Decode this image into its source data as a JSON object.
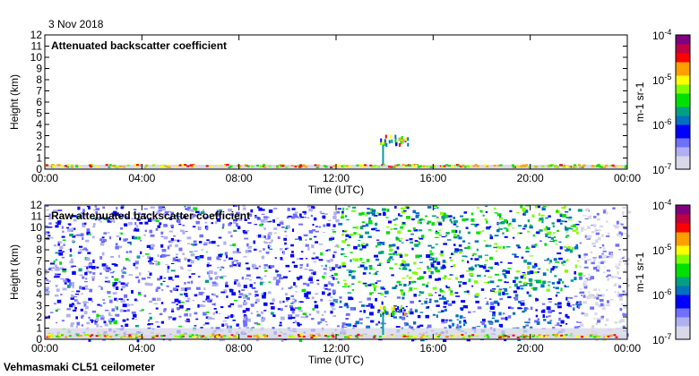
{
  "date": "3 Nov 2018",
  "footer": "Vehmasmaki CL51 ceilometer",
  "chart_data": [
    {
      "type": "heatmap",
      "title": "Attenuated backscatter coefficient",
      "xlabel": "Time (UTC)",
      "ylabel": "Height (km)",
      "x_ticks": [
        "00:00",
        "04:00",
        "08:00",
        "12:00",
        "16:00",
        "20:00",
        "00:00"
      ],
      "y_ticks": [
        "0",
        "1",
        "2",
        "3",
        "4",
        "5",
        "6",
        "7",
        "8",
        "9",
        "10",
        "11",
        "12"
      ],
      "ylim": [
        0,
        12
      ],
      "xlim_hours": [
        0,
        24
      ],
      "colorbar": {
        "label": "m-1 sr-1",
        "ticks": [
          "10-7",
          "10-6",
          "10-5",
          "10-4"
        ],
        "scale": "log",
        "range": [
          1e-07,
          0.0001
        ]
      }
    },
    {
      "type": "heatmap",
      "title": "Raw attenuated backscatter coefficient",
      "xlabel": "Time (UTC)",
      "ylabel": "Height (km)",
      "x_ticks": [
        "00:00",
        "04:00",
        "08:00",
        "12:00",
        "16:00",
        "20:00",
        "00:00"
      ],
      "y_ticks": [
        "0",
        "1",
        "2",
        "3",
        "4",
        "5",
        "6",
        "7",
        "8",
        "9",
        "10",
        "11",
        "12"
      ],
      "ylim": [
        0,
        12
      ],
      "xlim_hours": [
        0,
        24
      ],
      "colorbar": {
        "label": "m-1 sr-1",
        "ticks": [
          "10-7",
          "10-6",
          "10-5",
          "10-4"
        ],
        "scale": "log",
        "range": [
          1e-07,
          0.0001
        ]
      }
    }
  ],
  "colors": {
    "low": "#d8d8e8",
    "blue": "#0000ff",
    "green": "#00e000",
    "yellow": "#ffff00",
    "red": "#ff0000",
    "high": "#800080"
  }
}
